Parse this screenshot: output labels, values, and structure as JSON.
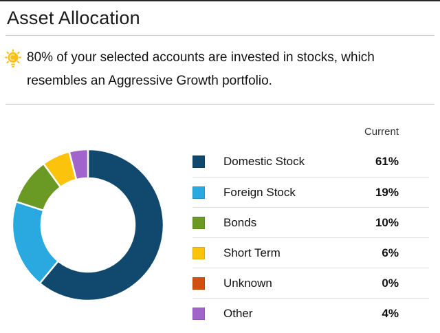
{
  "page": {
    "title": "Asset Allocation"
  },
  "insight": {
    "icon": "lightbulb-icon",
    "icon_color": "#fcbf12",
    "text": "80% of your selected accounts are invested in stocks, which resembles an Aggressive Growth portfolio."
  },
  "legend": {
    "column_header": "Current"
  },
  "chart_data": {
    "type": "pie",
    "subtype": "donut",
    "title": "Asset Allocation",
    "categories": [
      "Domestic Stock",
      "Foreign Stock",
      "Bonds",
      "Short Term",
      "Unknown",
      "Other"
    ],
    "values": [
      61,
      19,
      10,
      6,
      0,
      4
    ],
    "unit": "%",
    "colors": [
      "#11486e",
      "#29a9e0",
      "#6a9a23",
      "#fcc30d",
      "#d2500f",
      "#a164cb"
    ],
    "start_angle_deg": 0,
    "direction": "clockwise",
    "outer_radius_px": 110,
    "inner_radius_px": 68,
    "slice_gap_color": "#ffffff",
    "legend_position": "right",
    "value_column_header": "Current"
  }
}
